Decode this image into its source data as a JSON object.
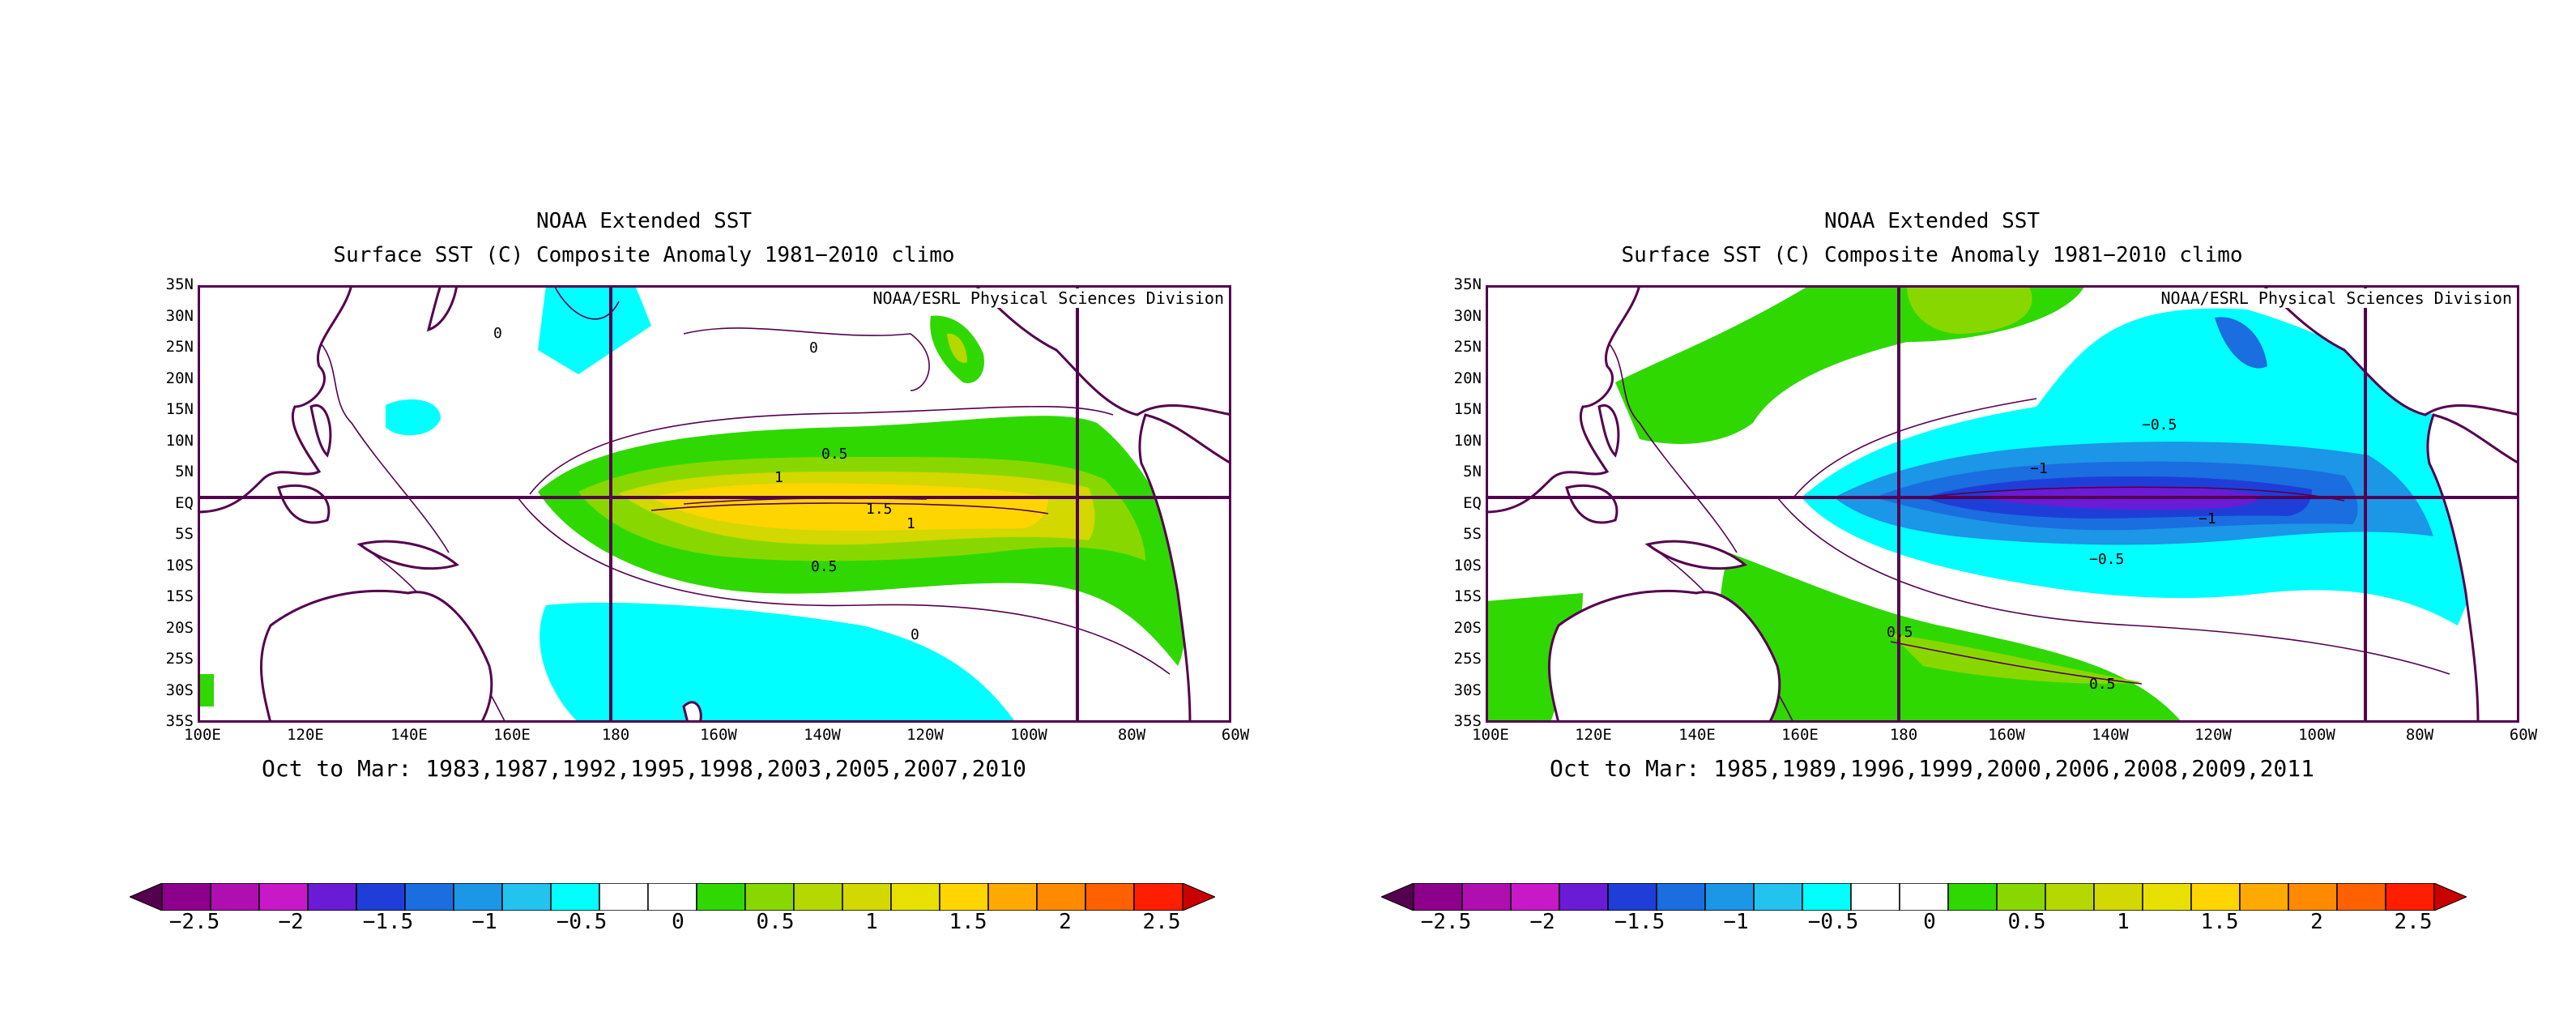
{
  "colorbar": {
    "colors": [
      "#55004f",
      "#8c008c",
      "#b00fb0",
      "#c818c8",
      "#6a1bd6",
      "#1f3ed8",
      "#1a6ee0",
      "#1c96e6",
      "#22c3ee",
      "#00ffff",
      "#ffffff",
      "#ffffff",
      "#2fd800",
      "#88d800",
      "#b5d800",
      "#d2d800",
      "#e8e000",
      "#ffd500",
      "#ffaa00",
      "#ff8a00",
      "#ff6000",
      "#ff1e00",
      "#c80000"
    ],
    "ticks": [
      "−2.5",
      "−2",
      "−1.5",
      "−1",
      "−0.5",
      "0",
      "0.5",
      "1",
      "1.5",
      "2",
      "2.5"
    ]
  },
  "panels": [
    {
      "title_line1": "NOAA Extended SST",
      "title_line2": "Surface SST (C) Composite Anomaly 1981−2010 climo",
      "credit": "NOAA/ESRL Physical Sciences Division",
      "y_ticks": [
        "35N",
        "30N",
        "25N",
        "20N",
        "15N",
        "10N",
        "5N",
        "EQ",
        "5S",
        "10S",
        "15S",
        "20S",
        "25S",
        "30S",
        "35S"
      ],
      "x_ticks": [
        "100E",
        "120E",
        "140E",
        "160E",
        "180",
        "160W",
        "140W",
        "120W",
        "100W",
        "80W",
        "60W"
      ],
      "contour_labels": [
        "0",
        "0",
        "0.5",
        "1",
        "1.5",
        "1",
        "0.5",
        "0"
      ],
      "caption": "Oct to Mar: 1983,1987,1992,1995,1998,2003,2005,2007,2010",
      "phase": "warm"
    },
    {
      "title_line1": "NOAA Extended SST",
      "title_line2": "Surface SST (C) Composite Anomaly 1981−2010 climo",
      "credit": "NOAA/ESRL Physical Sciences Division",
      "y_ticks": [
        "35N",
        "30N",
        "25N",
        "20N",
        "15N",
        "10N",
        "5N",
        "EQ",
        "5S",
        "10S",
        "15S",
        "20S",
        "25S",
        "30S",
        "35S"
      ],
      "x_ticks": [
        "100E",
        "120E",
        "140E",
        "160E",
        "180",
        "160W",
        "140W",
        "120W",
        "100W",
        "80W",
        "60W"
      ],
      "contour_labels": [
        "−0.5",
        "−1",
        "−1",
        "−0.5",
        "0.5",
        "0.5"
      ],
      "caption": "Oct to Mar: 1985,1989,1996,1999,2000,2006,2008,2009,2011",
      "phase": "cold"
    }
  ]
}
